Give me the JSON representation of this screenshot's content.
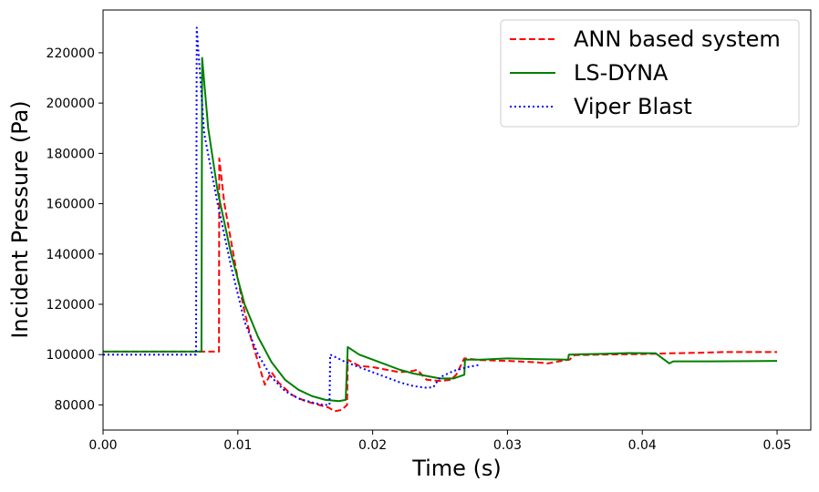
{
  "chart_data": {
    "type": "line",
    "title": "",
    "xlabel": "Time (s)",
    "ylabel": "Incident Pressure (Pa)",
    "xlim": [
      0,
      0.0525
    ],
    "ylim": [
      70000,
      237000
    ],
    "x_ticks": [
      0,
      0.01,
      0.02,
      0.03,
      0.04,
      0.05
    ],
    "x_tick_labels": [
      "0.00",
      "0.01",
      "0.02",
      "0.03",
      "0.04",
      "0.05"
    ],
    "y_ticks": [
      80000,
      100000,
      120000,
      140000,
      160000,
      180000,
      200000,
      220000
    ],
    "y_tick_labels": [
      "80000",
      "100000",
      "120000",
      "140000",
      "160000",
      "180000",
      "200000",
      "220000"
    ],
    "grid": false,
    "legend_position": "top-right",
    "series": [
      {
        "name": "ANN based system",
        "color": "#ff0000",
        "style": "dashed",
        "points": [
          [
            0,
            101200
          ],
          [
            0.0086,
            101200
          ],
          [
            0.00862,
            178000
          ],
          [
            0.009,
            160000
          ],
          [
            0.0095,
            145000
          ],
          [
            0.01,
            130000
          ],
          [
            0.0105,
            117000
          ],
          [
            0.011,
            106000
          ],
          [
            0.0115,
            97000
          ],
          [
            0.012,
            88000
          ],
          [
            0.0125,
            93000
          ],
          [
            0.013,
            89000
          ],
          [
            0.014,
            84000
          ],
          [
            0.015,
            81500
          ],
          [
            0.016,
            80000
          ],
          [
            0.0167,
            79000
          ],
          [
            0.0172,
            77500
          ],
          [
            0.0177,
            78000
          ],
          [
            0.0181,
            80000
          ],
          [
            0.01815,
            98000
          ],
          [
            0.019,
            95500
          ],
          [
            0.02,
            95000
          ],
          [
            0.021,
            94000
          ],
          [
            0.022,
            93000
          ],
          [
            0.023,
            93500
          ],
          [
            0.0233,
            94000
          ],
          [
            0.024,
            90000
          ],
          [
            0.025,
            89500
          ],
          [
            0.0258,
            90000
          ],
          [
            0.0262,
            92000
          ],
          [
            0.0268,
            98500
          ],
          [
            0.028,
            97800
          ],
          [
            0.03,
            97500
          ],
          [
            0.032,
            97000
          ],
          [
            0.033,
            96500
          ],
          [
            0.034,
            97500
          ],
          [
            0.0346,
            98000
          ],
          [
            0.035,
            99800
          ],
          [
            0.037,
            100000
          ],
          [
            0.04,
            100200
          ],
          [
            0.042,
            100500
          ],
          [
            0.044,
            100700
          ],
          [
            0.046,
            101000
          ],
          [
            0.05,
            101000
          ]
        ]
      },
      {
        "name": "LS-DYNA",
        "color": "#008000",
        "style": "solid",
        "points": [
          [
            0,
            101200
          ],
          [
            0.0073,
            101200
          ],
          [
            0.00735,
            218000
          ],
          [
            0.0078,
            190000
          ],
          [
            0.0085,
            165000
          ],
          [
            0.0095,
            140000
          ],
          [
            0.0105,
            120000
          ],
          [
            0.0115,
            107000
          ],
          [
            0.0125,
            97000
          ],
          [
            0.0135,
            90000
          ],
          [
            0.0145,
            86000
          ],
          [
            0.0155,
            83500
          ],
          [
            0.0165,
            82000
          ],
          [
            0.0175,
            81500
          ],
          [
            0.018,
            82000
          ],
          [
            0.01815,
            103000
          ],
          [
            0.019,
            100000
          ],
          [
            0.02,
            98000
          ],
          [
            0.021,
            96000
          ],
          [
            0.022,
            94000
          ],
          [
            0.023,
            92500
          ],
          [
            0.024,
            91500
          ],
          [
            0.025,
            90500
          ],
          [
            0.026,
            90500
          ],
          [
            0.0268,
            92000
          ],
          [
            0.02685,
            98000
          ],
          [
            0.028,
            98000
          ],
          [
            0.03,
            98500
          ],
          [
            0.032,
            98200
          ],
          [
            0.0345,
            98000
          ],
          [
            0.03455,
            100000
          ],
          [
            0.037,
            100300
          ],
          [
            0.039,
            100600
          ],
          [
            0.041,
            100500
          ],
          [
            0.042,
            96500
          ],
          [
            0.0423,
            97300
          ],
          [
            0.045,
            97300
          ],
          [
            0.048,
            97400
          ],
          [
            0.05,
            97500
          ]
        ]
      },
      {
        "name": "Viper Blast",
        "color": "#0000ff",
        "style": "dotted",
        "points": [
          [
            0,
            100000
          ],
          [
            0.0069,
            100000
          ],
          [
            0.00695,
            230000
          ],
          [
            0.0075,
            188000
          ],
          [
            0.0085,
            160000
          ],
          [
            0.0095,
            135000
          ],
          [
            0.0105,
            113000
          ],
          [
            0.0115,
            100000
          ],
          [
            0.0125,
            91000
          ],
          [
            0.0135,
            85500
          ],
          [
            0.0145,
            82500
          ],
          [
            0.0155,
            81000
          ],
          [
            0.0163,
            80000
          ],
          [
            0.0168,
            80000
          ],
          [
            0.01685,
            100000
          ],
          [
            0.018,
            97000
          ],
          [
            0.019,
            95000
          ],
          [
            0.02,
            93000
          ],
          [
            0.021,
            91000
          ],
          [
            0.022,
            89000
          ],
          [
            0.023,
            87500
          ],
          [
            0.024,
            86800
          ],
          [
            0.0245,
            87000
          ],
          [
            0.025,
            91000
          ],
          [
            0.026,
            93500
          ],
          [
            0.027,
            95000
          ],
          [
            0.028,
            96000
          ]
        ]
      }
    ]
  }
}
